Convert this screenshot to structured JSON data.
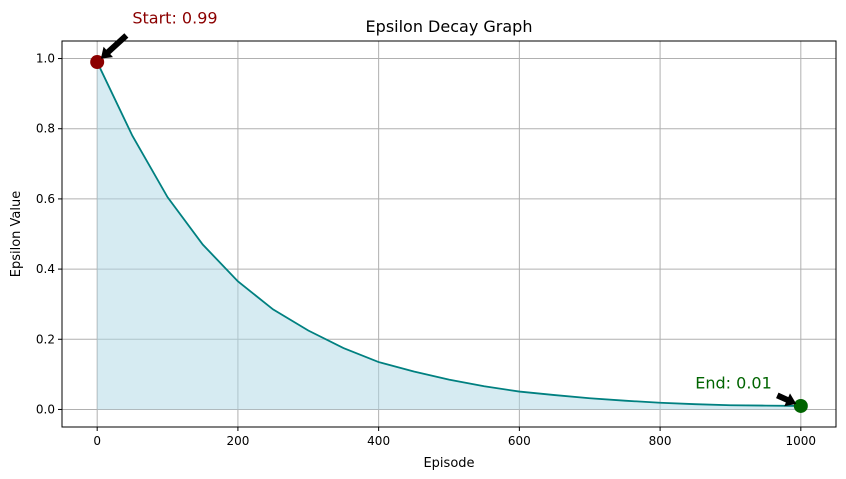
{
  "chart_data": {
    "type": "line",
    "title": "Epsilon Decay Graph",
    "xlabel": "Episode",
    "ylabel": "Epsilon Value",
    "xlim": [
      -50,
      1050
    ],
    "ylim": [
      -0.05,
      1.05
    ],
    "xticks": [
      0,
      200,
      400,
      600,
      800,
      1000
    ],
    "yticks": [
      0.0,
      0.2,
      0.4,
      0.6,
      0.8,
      1.0
    ],
    "xtick_labels": [
      "0",
      "200",
      "400",
      "600",
      "800",
      "1000"
    ],
    "ytick_labels": [
      "0.0",
      "0.2",
      "0.4",
      "0.6",
      "0.8",
      "1.0"
    ],
    "grid": true,
    "series": [
      {
        "x": [
          0,
          50,
          100,
          150,
          200,
          250,
          300,
          350,
          400,
          450,
          500,
          550,
          600,
          650,
          700,
          750,
          800,
          850,
          900,
          950,
          1000
        ],
        "values": [
          0.99,
          0.78,
          0.605,
          0.47,
          0.365,
          0.285,
          0.225,
          0.175,
          0.135,
          0.108,
          0.085,
          0.066,
          0.051,
          0.041,
          0.032,
          0.025,
          0.019,
          0.015,
          0.012,
          0.011,
          0.01
        ],
        "color": "#008080",
        "fill_color": "#add8e6"
      }
    ],
    "annotations": [
      {
        "text": "Start: 0.99",
        "x": 0,
        "y": 0.99,
        "text_x": 50,
        "text_y": 1.1,
        "color": "#8b0000"
      },
      {
        "text": "End: 0.01",
        "x": 1000,
        "y": 0.01,
        "text_x": 850,
        "text_y": 0.06,
        "color": "#006400"
      }
    ]
  }
}
